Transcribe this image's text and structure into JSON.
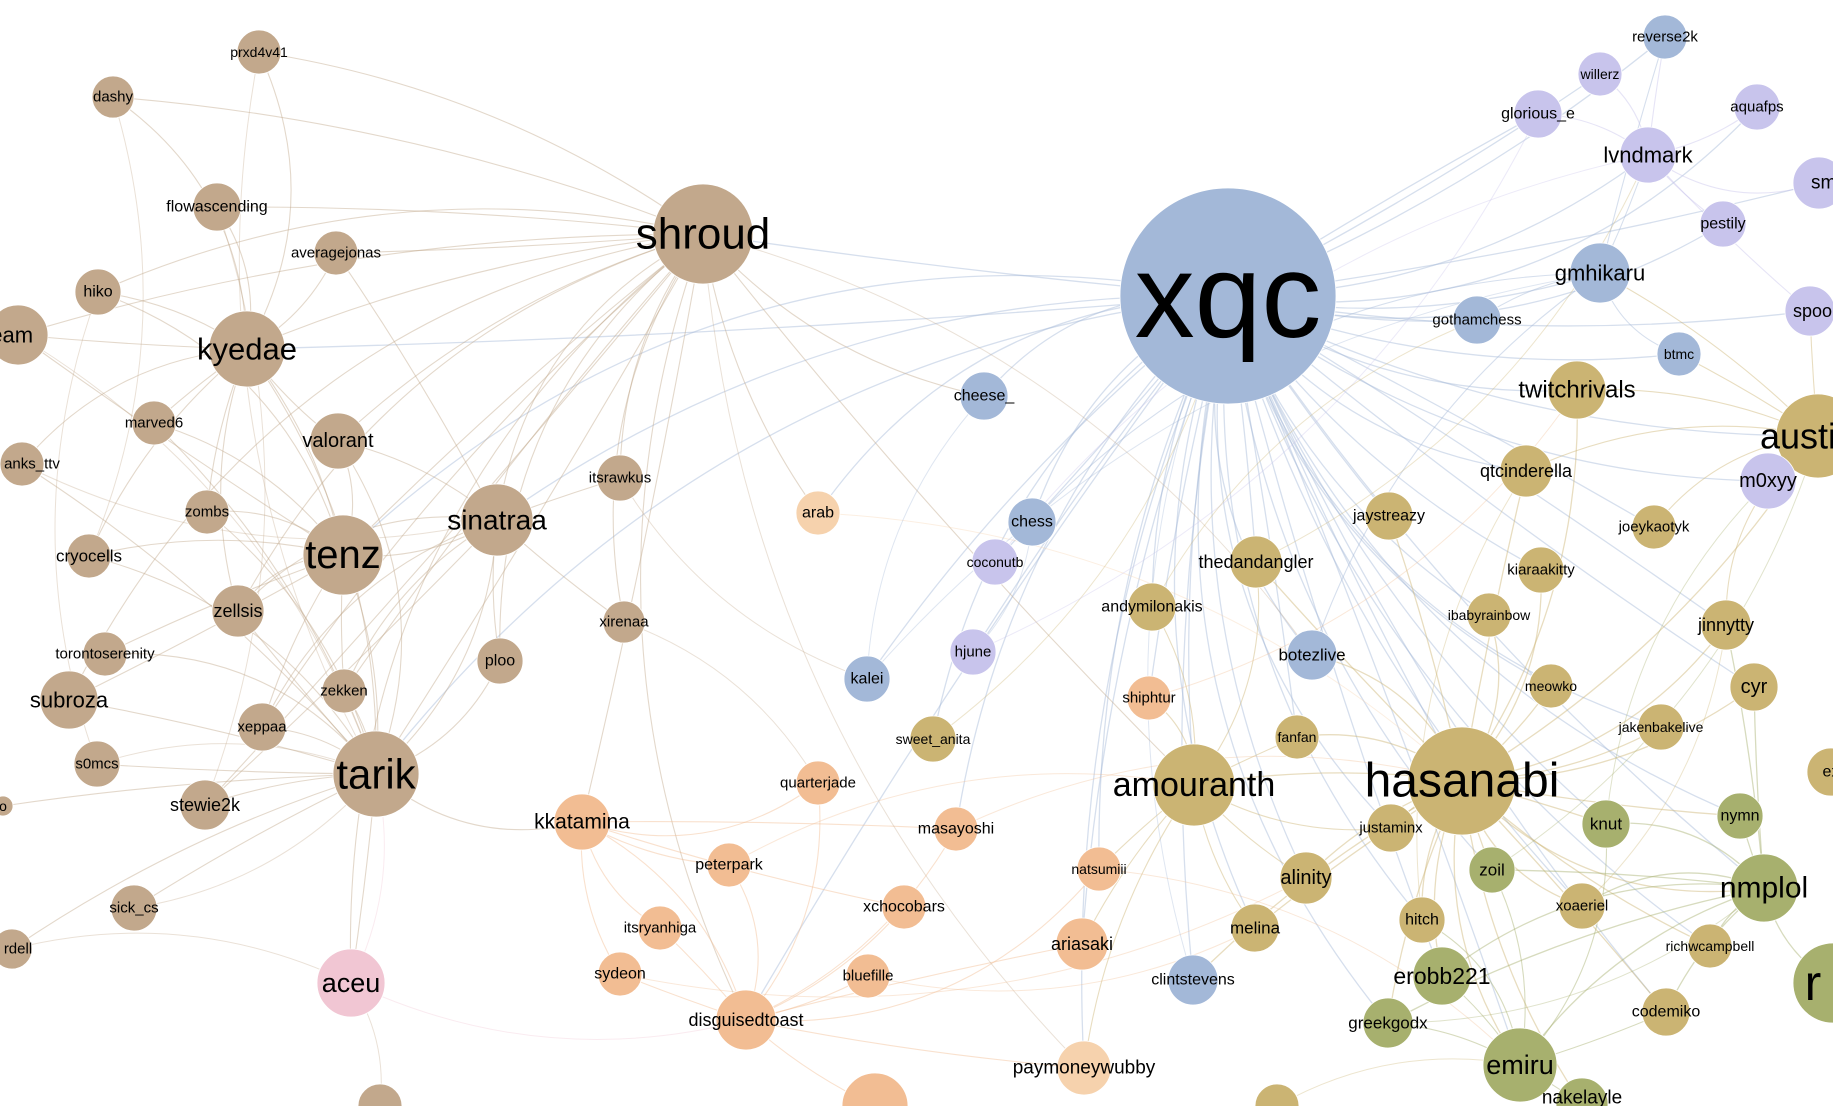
{
  "colors": {
    "brown": "#c2a88c",
    "blue": "#a3b8d8",
    "purple": "#c8c4ec",
    "gold": "#cbb473",
    "olive": "#a7b06e",
    "orange": "#f2bd93",
    "pink": "#f1c6d3",
    "light_orange": "#f6d2ad"
  },
  "nodes": [
    {
      "id": "xqc",
      "label": "xqc",
      "group": "blue"
    },
    {
      "id": "shroud",
      "label": "shroud",
      "group": "brown"
    },
    {
      "id": "hasanabi",
      "label": "hasanabi",
      "group": "gold"
    },
    {
      "id": "amouranth",
      "label": "amouranth",
      "group": "gold"
    },
    {
      "id": "tarik",
      "label": "tarik",
      "group": "brown"
    },
    {
      "id": "tenz",
      "label": "tenz",
      "group": "brown"
    },
    {
      "id": "kyedae",
      "label": "kyedae",
      "group": "brown"
    },
    {
      "id": "sinatraa",
      "label": "sinatraa",
      "group": "brown"
    },
    {
      "id": "austin",
      "label": "austin",
      "group": "gold"
    },
    {
      "id": "nmplol",
      "label": "nmplol",
      "group": "olive"
    },
    {
      "id": "emiru",
      "label": "emiru",
      "group": "olive"
    },
    {
      "id": "erobb221",
      "label": "erobb221",
      "group": "olive"
    },
    {
      "id": "gmhikaru",
      "label": "gmhikaru",
      "group": "blue"
    },
    {
      "id": "twitchrivals",
      "label": "twitchrivals",
      "group": "gold"
    },
    {
      "id": "lvndmark",
      "label": "lvndmark",
      "group": "purple"
    },
    {
      "id": "aceu",
      "label": "aceu",
      "group": "pink"
    },
    {
      "id": "subroza",
      "label": "subroza",
      "group": "brown"
    },
    {
      "id": "kkatamina",
      "label": "kkatamina",
      "group": "orange"
    },
    {
      "id": "disguisedtoast",
      "label": "disguisedtoast",
      "group": "orange"
    },
    {
      "id": "paymoneywubby",
      "label": "paymoneywubby",
      "group": "light_orange"
    },
    {
      "id": "thedandangler",
      "label": "thedandangler",
      "group": "gold"
    },
    {
      "id": "qtcinderella",
      "label": "qtcinderella",
      "group": "gold"
    },
    {
      "id": "alinity",
      "label": "alinity",
      "group": "gold"
    },
    {
      "id": "jinnytty",
      "label": "jinnytty",
      "group": "gold"
    },
    {
      "id": "cyr",
      "label": "cyr",
      "group": "gold"
    },
    {
      "id": "botezlive",
      "label": "botezlive",
      "group": "blue"
    },
    {
      "id": "greekgodx",
      "label": "greekgodx",
      "group": "olive"
    },
    {
      "id": "m0xyy",
      "label": "m0xyy",
      "group": "purple"
    },
    {
      "id": "valorant",
      "label": "valorant",
      "group": "brown"
    },
    {
      "id": "zellsis",
      "label": "zellsis",
      "group": "brown"
    },
    {
      "id": "stewie2k",
      "label": "stewie2k",
      "group": "brown"
    },
    {
      "id": "cryocells",
      "label": "cryocells",
      "group": "brown"
    },
    {
      "id": "zekken",
      "label": "zekken",
      "group": "brown"
    },
    {
      "id": "xeppaa",
      "label": "xeppaa",
      "group": "brown"
    },
    {
      "id": "itsrawkus",
      "label": "itsrawkus",
      "group": "brown"
    },
    {
      "id": "xirenaa",
      "label": "xirenaa",
      "group": "brown"
    },
    {
      "id": "ploo",
      "label": "ploo",
      "group": "brown"
    },
    {
      "id": "averagejonas",
      "label": "averagejonas",
      "group": "brown"
    },
    {
      "id": "flowascending",
      "label": "flowascending",
      "group": "brown"
    },
    {
      "id": "dashy",
      "label": "dashy",
      "group": "brown"
    },
    {
      "id": "prxd4v41",
      "label": "prxd4v41",
      "group": "brown"
    },
    {
      "id": "hiko",
      "label": "hiko",
      "group": "brown"
    },
    {
      "id": "marved6",
      "label": "marved6",
      "group": "brown"
    },
    {
      "id": "zombs",
      "label": "zombs",
      "group": "brown"
    },
    {
      "id": "torontoserenity",
      "label": "torontoserenity",
      "group": "brown"
    },
    {
      "id": "s0mcs",
      "label": "s0mcs",
      "group": "brown"
    },
    {
      "id": "sick_cs",
      "label": "sick_cs",
      "group": "brown"
    },
    {
      "id": "ream",
      "label": "ream",
      "group": "brown"
    },
    {
      "id": "anks_ttv",
      "label": "anks_ttv",
      "group": "brown"
    },
    {
      "id": "rdell",
      "label": "rdell",
      "group": "brown"
    },
    {
      "id": "o_frag",
      "label": "o",
      "group": "brown"
    },
    {
      "id": "arab",
      "label": "arab",
      "group": "light_orange"
    },
    {
      "id": "cheese_",
      "label": "cheese_",
      "group": "blue"
    },
    {
      "id": "chess",
      "label": "chess",
      "group": "blue"
    },
    {
      "id": "coconutb",
      "label": "coconutb",
      "group": "purple"
    },
    {
      "id": "hjune",
      "label": "hjune",
      "group": "purple"
    },
    {
      "id": "kalei",
      "label": "kalei",
      "group": "blue"
    },
    {
      "id": "sweet_anita",
      "label": "sweet_anita",
      "group": "gold"
    },
    {
      "id": "quarterjade",
      "label": "quarterjade",
      "group": "orange"
    },
    {
      "id": "masayoshi",
      "label": "masayoshi",
      "group": "orange"
    },
    {
      "id": "peterpark",
      "label": "peterpark",
      "group": "orange"
    },
    {
      "id": "natsumiii",
      "label": "natsumiii",
      "group": "orange"
    },
    {
      "id": "xchocobars",
      "label": "xchocobars",
      "group": "orange"
    },
    {
      "id": "itsryanhiga",
      "label": "itsryanhiga",
      "group": "orange"
    },
    {
      "id": "sydeon",
      "label": "sydeon",
      "group": "orange"
    },
    {
      "id": "bluefille",
      "label": "bluefille",
      "group": "orange"
    },
    {
      "id": "ariasaki",
      "label": "ariasaki",
      "group": "orange"
    },
    {
      "id": "shiphtur",
      "label": "shiphtur",
      "group": "orange"
    },
    {
      "id": "andymilonakis",
      "label": "andymilonakis",
      "group": "gold"
    },
    {
      "id": "fanfan",
      "label": "fanfan",
      "group": "gold"
    },
    {
      "id": "clintstevens",
      "label": "clintstevens",
      "group": "blue"
    },
    {
      "id": "melina",
      "label": "melina",
      "group": "gold"
    },
    {
      "id": "justaminx",
      "label": "justaminx",
      "group": "gold"
    },
    {
      "id": "hitch",
      "label": "hitch",
      "group": "gold"
    },
    {
      "id": "zoil",
      "label": "zoil",
      "group": "olive"
    },
    {
      "id": "knut",
      "label": "knut",
      "group": "olive"
    },
    {
      "id": "nymn",
      "label": "nymn",
      "group": "olive"
    },
    {
      "id": "xoaeriel",
      "label": "xoaeriel",
      "group": "gold"
    },
    {
      "id": "richwcampbell",
      "label": "richwcampbell",
      "group": "gold"
    },
    {
      "id": "codemiko",
      "label": "codemiko",
      "group": "gold"
    },
    {
      "id": "jakenbakelive",
      "label": "jakenbakelive",
      "group": "gold"
    },
    {
      "id": "meowko",
      "label": "meowko",
      "group": "gold"
    },
    {
      "id": "ibabyrainbow",
      "label": "ibabyrainbow",
      "group": "gold"
    },
    {
      "id": "kiaraakitty",
      "label": "kiaraakitty",
      "group": "gold"
    },
    {
      "id": "joeykaotyk",
      "label": "joeykaotyk",
      "group": "gold"
    },
    {
      "id": "jaystreazy",
      "label": "jaystreazy",
      "group": "gold"
    },
    {
      "id": "gothamchess",
      "label": "gothamchess",
      "group": "blue"
    },
    {
      "id": "btmc",
      "label": "btmc",
      "group": "blue"
    },
    {
      "id": "pestily",
      "label": "pestily",
      "group": "purple"
    },
    {
      "id": "aquafps",
      "label": "aquafps",
      "group": "purple"
    },
    {
      "id": "glorious_e",
      "label": "glorious_e",
      "group": "purple"
    },
    {
      "id": "willerz",
      "label": "willerz",
      "group": "purple"
    },
    {
      "id": "reverse2k",
      "label": "reverse2k",
      "group": "blue"
    },
    {
      "id": "smo",
      "label": "smo",
      "group": "purple"
    },
    {
      "id": "spoonk",
      "label": "spoonk",
      "group": "purple"
    },
    {
      "id": "nakelayle",
      "label": "nakelayle",
      "group": "olive"
    },
    {
      "id": "ex_frag",
      "label": "ex",
      "group": "gold"
    },
    {
      "id": "r_frag",
      "label": "r",
      "group": "olive"
    },
    {
      "id": "bottom_orange",
      "label": "",
      "group": "orange"
    },
    {
      "id": "bottom_brown",
      "label": "",
      "group": "brown"
    },
    {
      "id": "bottom_gold",
      "label": "",
      "group": "gold"
    }
  ]
}
